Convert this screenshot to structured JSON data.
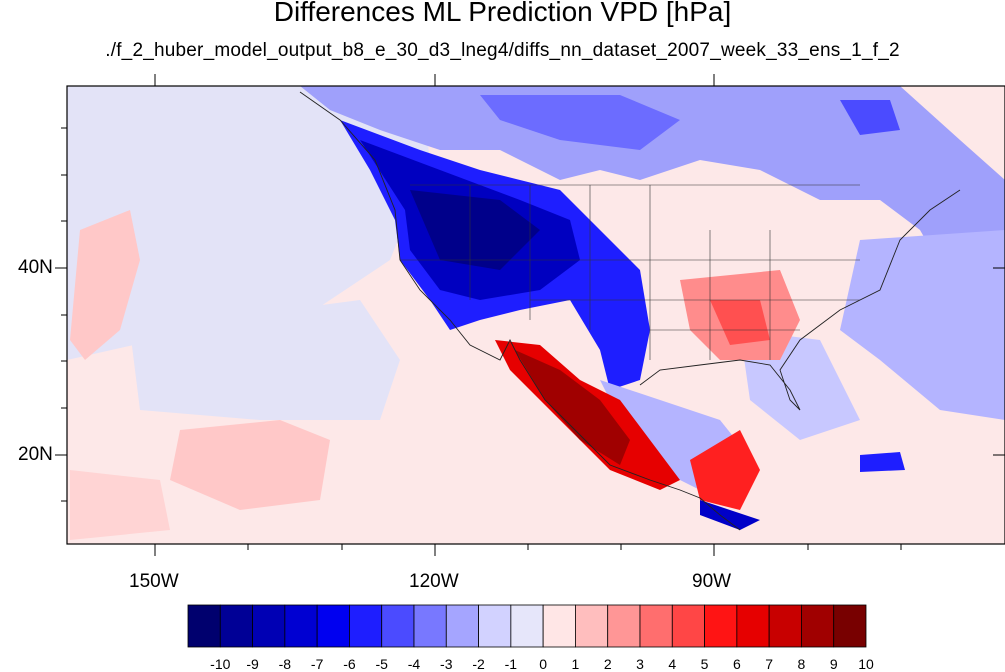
{
  "title": "Differences ML Prediction VPD [hPa]",
  "subtitle": "./f_2_huber_model_output_b8_e_30_d3_lneg4/diffs_nn_dataset_2007_week_33_ens_1_f_2",
  "lat_labels": [
    "40N",
    "20N"
  ],
  "lon_labels": [
    "150W",
    "120W",
    "90W"
  ],
  "colorbar": {
    "labels": [
      "-10",
      "-9",
      "-8",
      "-7",
      "-6",
      "-5",
      "-4",
      "-3",
      "-2",
      "-1",
      "0",
      "1",
      "2",
      "3",
      "4",
      "5",
      "6",
      "7",
      "8",
      "9",
      "10"
    ],
    "colors": [
      "#00006e",
      "#000096",
      "#0000b4",
      "#0000d2",
      "#0000f0",
      "#1e1eff",
      "#4b4bff",
      "#7878ff",
      "#a5a5ff",
      "#d2d2ff",
      "#e6e6fa",
      "#ffe6e6",
      "#ffbebe",
      "#ff9696",
      "#ff6e6e",
      "#ff4646",
      "#ff1414",
      "#e60000",
      "#c80000",
      "#a00000",
      "#780000"
    ]
  }
}
